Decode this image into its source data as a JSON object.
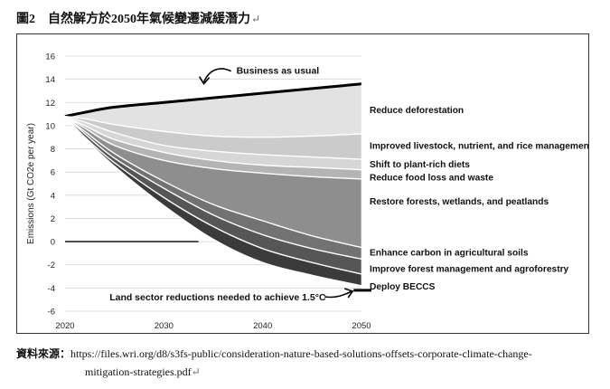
{
  "caption": {
    "figure_no": "圖2",
    "title": "自然解方於2050年氣候變遷減緩潛力",
    "mark": "↵"
  },
  "source": {
    "label": "資料來源：",
    "url_line1": "https://files.wri.org/d8/s3fs-public/consideration-nature-based-solutions-offsets-corporate-climate-change-",
    "url_line2": "mitigation-strategies.pdf",
    "mark": "↵"
  },
  "chart_data": {
    "type": "area",
    "ylabel": "Emissions (Gt CO2e per year)",
    "xlim": [
      2020,
      2050
    ],
    "ylim": [
      -6,
      16
    ],
    "x_ticks": [
      "2020",
      "2030",
      "2040",
      "2050"
    ],
    "y_ticks": [
      "16",
      "14",
      "12",
      "10",
      "8",
      "6",
      "4",
      "2",
      "0",
      "-2",
      "-4",
      "-6"
    ],
    "grid": true,
    "x": [
      2020,
      2022,
      2025,
      2030,
      2035,
      2040,
      2045,
      2050
    ],
    "boundaries": [
      {
        "name": "Business as usual",
        "values": [
          10.8,
          11.15,
          11.6,
          12.0,
          12.4,
          12.8,
          13.2,
          13.6
        ]
      },
      {
        "name": "Reduce deforestation",
        "values": [
          10.8,
          10.6,
          10.1,
          9.5,
          9.1,
          9.0,
          9.1,
          9.3
        ]
      },
      {
        "name": "Improved livestock, nutrient, and rice management",
        "values": [
          10.8,
          10.3,
          9.4,
          8.3,
          7.8,
          7.5,
          7.3,
          7.1
        ]
      },
      {
        "name": "Shift to plant-rich diets",
        "values": [
          10.8,
          10.0,
          8.8,
          7.7,
          7.0,
          6.6,
          6.4,
          6.2
        ]
      },
      {
        "name": "Reduce food loss and waste",
        "values": [
          10.8,
          9.8,
          8.3,
          7.0,
          6.3,
          5.9,
          5.6,
          5.4
        ]
      },
      {
        "name": "Restore forests, wetlands, and peatlands",
        "values": [
          10.8,
          9.5,
          7.6,
          5.2,
          3.2,
          1.8,
          0.5,
          -0.5
        ]
      },
      {
        "name": "Enhance carbon in agricultural soils",
        "values": [
          10.8,
          9.3,
          7.2,
          4.6,
          2.3,
          0.6,
          -0.6,
          -1.5
        ]
      },
      {
        "name": "Improve forest management and agroforestry",
        "values": [
          10.8,
          9.0,
          6.8,
          3.8,
          1.3,
          -0.6,
          -1.8,
          -2.8
        ]
      },
      {
        "name": "Deploy BECCS",
        "values": [
          10.8,
          8.9,
          6.5,
          3.1,
          0.2,
          -1.8,
          -2.9,
          -3.8
        ]
      }
    ],
    "fills": [
      "#ffffff",
      "#e2e2e2",
      "#cbcbcb",
      "#d6d6d6",
      "#b4b4b4",
      "#8e8e8e",
      "#727272",
      "#565656",
      "#3b3b3b"
    ],
    "labels": [
      {
        "text": "Reduce deforestation",
        "y": 11.4
      },
      {
        "text": "Improved livestock, nutrient, and rice management",
        "y": 8.3
      },
      {
        "text": "Shift to plant-rich diets",
        "y": 6.7
      },
      {
        "text": "Reduce food loss and waste",
        "y": 5.6
      },
      {
        "text": "Restore forests, wetlands, and peatlands",
        "y": 3.5
      },
      {
        "text": "Enhance carbon in agricultural soils",
        "y": -0.9
      },
      {
        "text": "Improve forest management and agroforestry",
        "y": -2.3
      },
      {
        "text": "Deploy BECCS",
        "y": -3.8
      }
    ],
    "annotations": {
      "bau": {
        "text": "Business as usual",
        "x": 2033.5,
        "y": 14.7
      },
      "target": {
        "text": "Land sector reductions needed to achieve 1.5°C",
        "x": 2024.5,
        "y": -4.75,
        "value": -4.2,
        "from": 2050,
        "to": 2050
      }
    },
    "zero_line": {
      "y": 0,
      "from": 2020,
      "to": 2033.5
    },
    "target_bar": {
      "y": -4.2,
      "from": 2049.2,
      "to": 2051
    }
  }
}
